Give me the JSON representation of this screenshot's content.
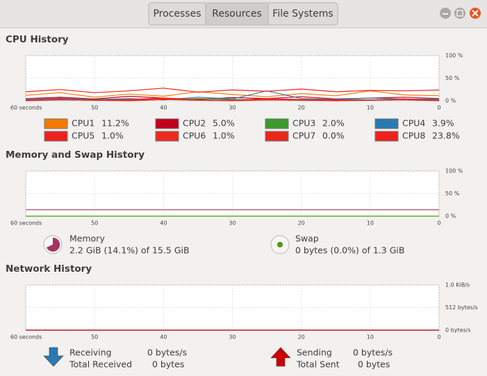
{
  "tabs": [
    "Processes",
    "Resources",
    "File Systems"
  ],
  "cpu": {
    "title": "CPU History",
    "xlim": [
      60,
      0
    ],
    "ylim": [
      0,
      100
    ],
    "xticks": [
      {
        "value": 60,
        "label": "60 seconds"
      },
      50,
      40,
      30,
      20,
      10,
      0
    ],
    "yticks": [
      {
        "value": 0,
        "label": "0 %"
      },
      {
        "value": 50,
        "label": "50 %"
      },
      {
        "value": 100,
        "label": "100 %"
      }
    ],
    "x": [
      60,
      55,
      50,
      45,
      40,
      35,
      30,
      25,
      20,
      15,
      10,
      5,
      0
    ],
    "series": [
      {
        "name": "CPU1",
        "value_label": "11.2%",
        "color": "#f57900",
        "values": [
          12,
          18,
          8,
          15,
          10,
          20,
          14,
          9,
          16,
          11,
          22,
          13,
          11.2
        ]
      },
      {
        "name": "CPU2",
        "value_label": "5.0%",
        "color": "#c4001f",
        "values": [
          5,
          8,
          4,
          10,
          6,
          3,
          7,
          5,
          9,
          4,
          6,
          8,
          5
        ]
      },
      {
        "name": "CPU3",
        "value_label": "2.0%",
        "color": "#3c9a2c",
        "values": [
          2,
          3,
          1,
          4,
          2,
          5,
          3,
          2,
          1,
          3,
          2,
          4,
          2
        ]
      },
      {
        "name": "CPU4",
        "value_label": "3.9%",
        "color": "#2a7ab0",
        "values": [
          4,
          6,
          3,
          5,
          2,
          8,
          4,
          22,
          5,
          3,
          6,
          4,
          3.9
        ]
      },
      {
        "name": "CPU5",
        "value_label": "1.0%",
        "color": "#ef2020",
        "values": [
          2,
          4,
          1,
          3,
          6,
          2,
          1,
          5,
          3,
          2,
          1,
          4,
          1
        ]
      },
      {
        "name": "CPU6",
        "value_label": "1.0%",
        "color": "#ee2a1e",
        "values": [
          1,
          3,
          2,
          1,
          4,
          2,
          1,
          3,
          2,
          1,
          2,
          3,
          1
        ]
      },
      {
        "name": "CPU7",
        "value_label": "0.0%",
        "color": "#e8281c",
        "values": [
          0,
          2,
          1,
          0,
          3,
          1,
          0,
          2,
          1,
          0,
          1,
          2,
          0
        ]
      },
      {
        "name": "CPU8",
        "value_label": "23.8%",
        "color": "#f0201c",
        "values": [
          20,
          25,
          18,
          22,
          28,
          19,
          24,
          21,
          26,
          20,
          23,
          22,
          23.8
        ]
      }
    ]
  },
  "memory": {
    "title": "Memory and Swap History",
    "xlim": [
      60,
      0
    ],
    "ylim": [
      0,
      100
    ],
    "xticks": [
      {
        "value": 60,
        "label": "60 seconds"
      },
      50,
      40,
      30,
      20,
      10,
      0
    ],
    "yticks": [
      {
        "value": 0,
        "label": "0 %"
      },
      {
        "value": 50,
        "label": "50 %"
      },
      {
        "value": 100,
        "label": "100 %"
      }
    ],
    "x": [
      60,
      0
    ],
    "series": [
      {
        "name": "Memory",
        "detail": "2.2 GiB (14.1%) of 15.5 GiB",
        "color": "#a8325e",
        "values": [
          14.1,
          14.1
        ]
      },
      {
        "name": "Swap",
        "detail": "0 bytes (0.0%) of 1.3 GiB",
        "color": "#4e9a06",
        "values": [
          0,
          0
        ]
      }
    ]
  },
  "network": {
    "title": "Network History",
    "xlim": [
      60,
      0
    ],
    "ylim": [
      0,
      1024
    ],
    "xticks": [
      {
        "value": 60,
        "label": "60 seconds"
      },
      50,
      40,
      30,
      20,
      10,
      0
    ],
    "yticks": [
      {
        "value": 0,
        "label": "0 bytes/s"
      },
      {
        "value": 512,
        "label": "512 bytes/s"
      },
      {
        "value": 1024,
        "label": "1.0 KiB/s"
      }
    ],
    "x": [
      60,
      0
    ],
    "series": [
      {
        "name": "Receiving",
        "rate": "0 bytes/s",
        "total_name": "Total Received",
        "total": "0 bytes",
        "color": "#2a7ab0",
        "values": [
          0,
          0
        ]
      },
      {
        "name": "Sending",
        "rate": "0 bytes/s",
        "total_name": "Total Sent",
        "total": "0 bytes",
        "color": "#cc0000",
        "values": [
          0,
          0
        ]
      }
    ]
  }
}
